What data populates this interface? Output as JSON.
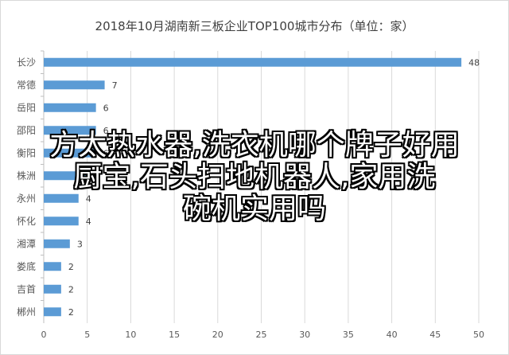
{
  "chart_data": {
    "type": "bar",
    "orientation": "horizontal",
    "title": "2018年10月湖南新三板企业TOP100城市分布（单位：家）",
    "categories": [
      "长沙",
      "常德",
      "岳阳",
      "邵阳",
      "衡阳",
      "株洲",
      "永州",
      "怀化",
      "湘潭",
      "娄底",
      "吉首",
      "郴州"
    ],
    "values": [
      48,
      7,
      6,
      6,
      6,
      5,
      4,
      4,
      3,
      2,
      2,
      2
    ],
    "xlim": [
      0,
      50
    ],
    "xticks": [
      0,
      5,
      10,
      15,
      20,
      25,
      30,
      35,
      40,
      45,
      50
    ],
    "gridlines": true,
    "bar_color": "#5b9bd5"
  },
  "overlay": {
    "lines": [
      "方太热水器,洗衣机哪个牌子好用",
      "厨宝,石头扫地机器人,家用洗",
      "碗机实用吗"
    ]
  }
}
